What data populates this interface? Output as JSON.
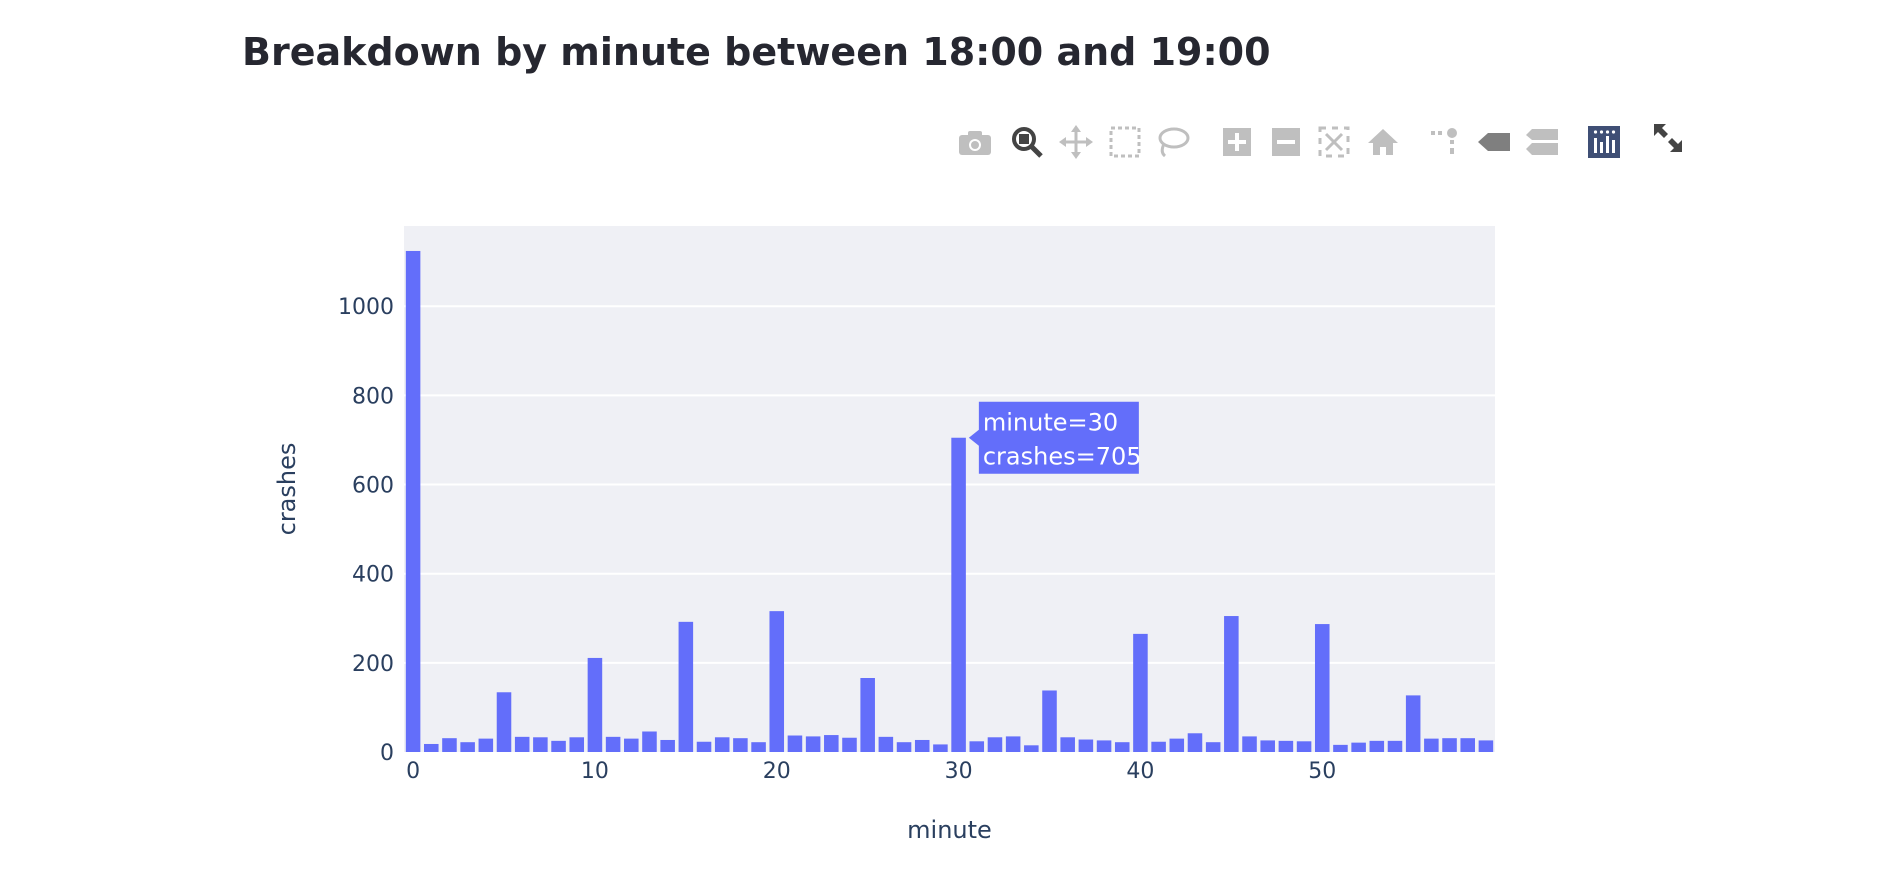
{
  "chart_title": "Breakdown by minute between 18:00 and 19:00",
  "modebar": {
    "buttons": [
      "camera-icon",
      "zoom-icon",
      "pan-icon",
      "box-select-icon",
      "lasso-icon",
      "zoom-in-icon",
      "zoom-out-icon",
      "autoscale-icon",
      "reset-axes-icon",
      "spike-lines-icon",
      "hover-closest-icon",
      "hover-compare-icon",
      "plotly-logo-icon"
    ],
    "expand": "fullscreen-icon"
  },
  "colors": {
    "bar": "#636efa",
    "plot_bg": "#eff0f5",
    "grid": "#ffffff",
    "title": "#262730",
    "icon": "#bfbfbf",
    "icon_active": "#444444"
  },
  "chart_data": {
    "type": "bar",
    "title": "Breakdown by minute between 18:00 and 19:00",
    "xlabel": "minute",
    "ylabel": "crashes",
    "xlim": [
      -0.5,
      59.5
    ],
    "ylim": [
      0,
      1180
    ],
    "xticks": [
      0,
      10,
      20,
      30,
      40,
      50
    ],
    "yticks": [
      0,
      200,
      400,
      600,
      800,
      1000
    ],
    "grid": true,
    "x": [
      0,
      1,
      2,
      3,
      4,
      5,
      6,
      7,
      8,
      9,
      10,
      11,
      12,
      13,
      14,
      15,
      16,
      17,
      18,
      19,
      20,
      21,
      22,
      23,
      24,
      25,
      26,
      27,
      28,
      29,
      30,
      31,
      32,
      33,
      34,
      35,
      36,
      37,
      38,
      39,
      40,
      41,
      42,
      43,
      44,
      45,
      46,
      47,
      48,
      49,
      50,
      51,
      52,
      53,
      54,
      55,
      56,
      57,
      58,
      59
    ],
    "values": [
      1124,
      18,
      31,
      22,
      30,
      134,
      34,
      33,
      25,
      33,
      211,
      34,
      30,
      46,
      27,
      292,
      23,
      33,
      31,
      22,
      316,
      37,
      35,
      38,
      32,
      166,
      34,
      22,
      27,
      17,
      705,
      24,
      33,
      35,
      15,
      138,
      33,
      28,
      26,
      22,
      265,
      23,
      30,
      42,
      22,
      305,
      35,
      26,
      25,
      24,
      287,
      16,
      21,
      25,
      25,
      127,
      30,
      31,
      31,
      26
    ],
    "tooltip": {
      "x_label": "minute=30",
      "y_label": "crashes=705",
      "index": 30
    }
  }
}
